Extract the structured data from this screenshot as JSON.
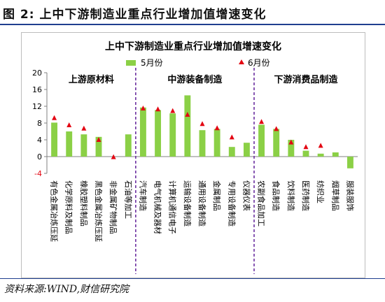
{
  "figure_title": "图 2:  上中下游制造业重点行业增加值增速变化",
  "source_note": "资料来源:WIND,财信研究院",
  "colors": {
    "bar": "#8bd046",
    "marker": "#e30613",
    "divider": "#6b2fa0",
    "rule": "#1f3f8f"
  },
  "chart_data": {
    "type": "bar",
    "title": "上中下游制造业重点行业增加值增速变化",
    "xlabel": "",
    "ylabel": "",
    "ylim": [
      -4,
      20
    ],
    "yticks": [
      -4,
      0,
      4,
      8,
      12,
      16,
      20
    ],
    "grid": false,
    "legend_position": "top",
    "group_labels": [
      "上游原材料",
      "中游装备制造",
      "下游消费品制造"
    ],
    "categories": [
      "有色金属冶炼压延",
      "化学原料及制品",
      "橡胶塑料制品",
      "黑色金属冶炼压延",
      "非金属矿物制品",
      "石油等加工",
      "汽车制造",
      "电气机械及器材",
      "计算机通信电子",
      "运输设备制造",
      "通用设备制造",
      "金属制品",
      "专用设备制造",
      "仪器仪表",
      "农副食品加工",
      "食品制造",
      "饮料制造",
      "医药制造",
      "纺织业",
      "烟草制品",
      "服装服饰"
    ],
    "series": [
      {
        "name": "5月份",
        "kind": "bar",
        "values": [
          8.1,
          6.0,
          5.3,
          4.7,
          0.0,
          5.3,
          11.7,
          11.1,
          10.3,
          14.6,
          6.3,
          6.6,
          2.3,
          3.3,
          7.6,
          6.6,
          4.0,
          1.4,
          0.7,
          1.0,
          -2.8
        ]
      },
      {
        "name": "6月份",
        "kind": "marker",
        "values": [
          9.2,
          7.5,
          6.7,
          4.0,
          -0.1,
          null,
          11.5,
          11.3,
          10.9,
          10.0,
          7.8,
          6.8,
          4.6,
          null,
          8.3,
          6.6,
          3.4,
          2.3,
          2.6,
          null,
          null
        ]
      }
    ],
    "dividers_after_index": [
      5,
      13
    ]
  }
}
